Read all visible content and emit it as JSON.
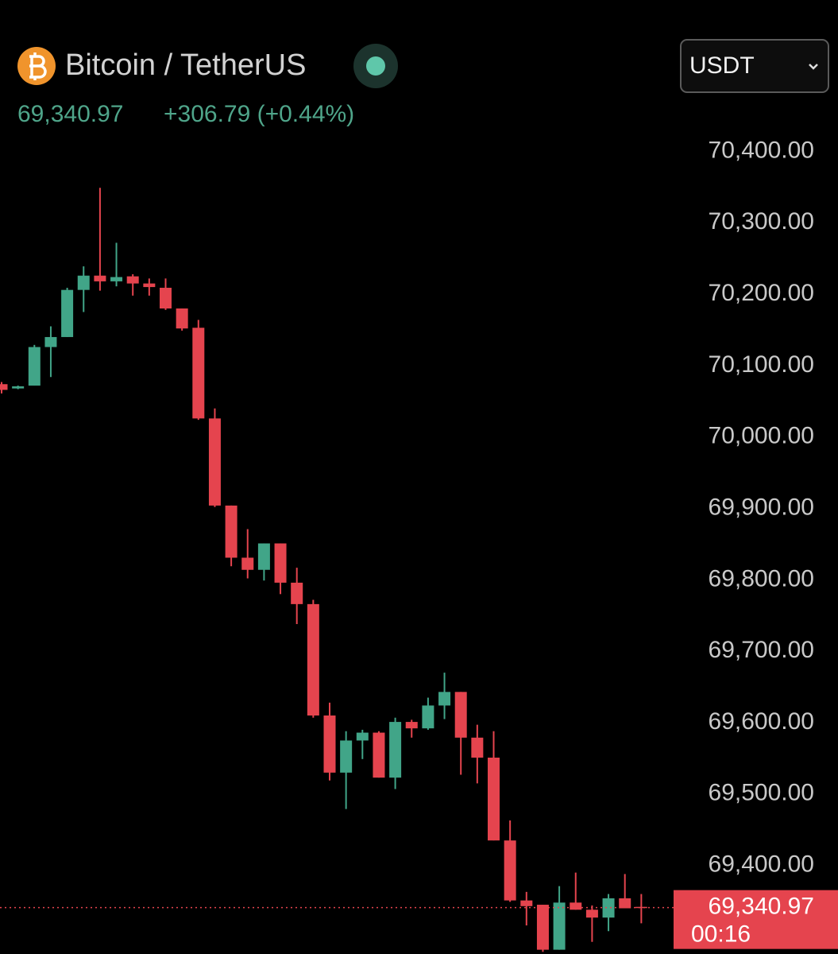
{
  "header": {
    "title": "Bitcoin / TetherUS",
    "change": "+306.79 (+0.44%)",
    "currency": "USDT"
  },
  "chart_data": {
    "type": "candlestick",
    "open": [
      70074,
      70068,
      70072,
      70126,
      70140,
      70206,
      70226,
      70218,
      70225,
      70215,
      70209,
      70180,
      70153,
      70026,
      69904,
      69831,
      69814,
      69851,
      69796,
      69766,
      69610,
      69530,
      69575,
      69586,
      69523,
      69601,
      69592,
      69624,
      69643,
      69579,
      69551,
      69435,
      69351,
      69345,
      69282,
      69348,
      69338,
      69327,
      69354,
      69342
    ],
    "high": [
      70077,
      70072,
      70129,
      70155,
      70209,
      70239,
      70349,
      70272,
      70228,
      70222,
      70222,
      70180,
      70164,
      70040,
      69904,
      69871,
      69851,
      69851,
      69817,
      69772,
      69628,
      69588,
      69590,
      69588,
      69607,
      69604,
      69635,
      69670,
      69643,
      69597,
      69588,
      69463,
      69363,
      69345,
      69371,
      69390,
      69344,
      69360,
      69388,
      69360
    ],
    "low": [
      70061,
      70067,
      70072,
      70084,
      70140,
      70175,
      70205,
      70211,
      70198,
      70198,
      70178,
      70149,
      70024,
      69902,
      69819,
      69802,
      69799,
      69780,
      69738,
      69607,
      69519,
      69479,
      69549,
      69523,
      69507,
      69579,
      69590,
      69605,
      69527,
      69515,
      69435,
      69349,
      69316,
      69279,
      69282,
      69338,
      69293,
      69308,
      69340,
      69319
    ],
    "close": [
      70066,
      70071,
      70126,
      70140,
      70206,
      70226,
      70218,
      70224,
      70215,
      70210,
      70180,
      70152,
      70026,
      69904,
      69831,
      69814,
      69851,
      69796,
      69766,
      69610,
      69530,
      69575,
      69586,
      69523,
      69601,
      69592,
      69624,
      69643,
      69579,
      69551,
      69435,
      69351,
      69343,
      69282,
      69348,
      69338,
      69327,
      69354,
      69340,
      69340.97
    ],
    "up_color": "#41a588",
    "down_color": "#e5444e",
    "last_price": {
      "value": 69340.97,
      "label": "69,340.97"
    },
    "countdown": "00:16",
    "ylim": [
      69276,
      70612
    ],
    "yticks": [
      {
        "value": 70400,
        "label": "70,400.00"
      },
      {
        "value": 70300,
        "label": "70,300.00"
      },
      {
        "value": 70200,
        "label": "70,200.00"
      },
      {
        "value": 70100,
        "label": "70,100.00"
      },
      {
        "value": 70000,
        "label": "70,000.00"
      },
      {
        "value": 69900,
        "label": "69,900.00"
      },
      {
        "value": 69800,
        "label": "69,800.00"
      },
      {
        "value": 69700,
        "label": "69,700.00"
      },
      {
        "value": 69600,
        "label": "69,600.00"
      },
      {
        "value": 69500,
        "label": "69,500.00"
      },
      {
        "value": 69400,
        "label": "69,400.00"
      }
    ],
    "grid": false
  }
}
